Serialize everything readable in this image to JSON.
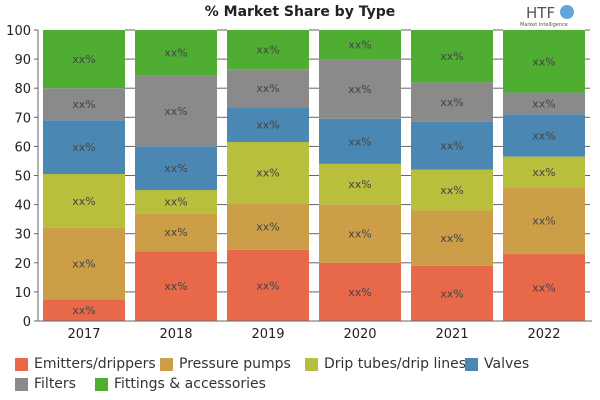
{
  "chart_data": {
    "type": "bar",
    "stacked": true,
    "title": "% Market Share by Type",
    "categories": [
      "2017",
      "2018",
      "2019",
      "2020",
      "2021",
      "2022"
    ],
    "ylim": [
      0,
      100
    ],
    "yticks": [
      0,
      10,
      20,
      30,
      40,
      50,
      60,
      70,
      80,
      90,
      100
    ],
    "grid": false,
    "legend_position": "bottom",
    "data_label": "xx%",
    "series": [
      {
        "name": "Emitters/drippers",
        "color": "#e8694a",
        "values": [
          7.5,
          24,
          24.5,
          20,
          19,
          23
        ]
      },
      {
        "name": "Pressure pumps",
        "color": "#cc9e48",
        "values": [
          24.5,
          13,
          16,
          20,
          19,
          23
        ]
      },
      {
        "name": "Drip tubes/drip lines",
        "color": "#b8bf3c",
        "values": [
          18.5,
          8,
          21,
          14,
          14,
          10.5
        ]
      },
      {
        "name": "Valves",
        "color": "#4a88b3",
        "values": [
          18.5,
          15,
          12,
          15.5,
          16.5,
          14.5
        ]
      },
      {
        "name": "Filters",
        "color": "#8a8a8a",
        "values": [
          11,
          24.5,
          13,
          20.5,
          13.5,
          7.5
        ]
      },
      {
        "name": "Fittings & accessories",
        "color": "#4fae32",
        "values": [
          20,
          15.5,
          13.5,
          10,
          18,
          21.5
        ]
      }
    ]
  },
  "logo": {
    "text": "HTF",
    "subtext": "Market Intelligence"
  }
}
